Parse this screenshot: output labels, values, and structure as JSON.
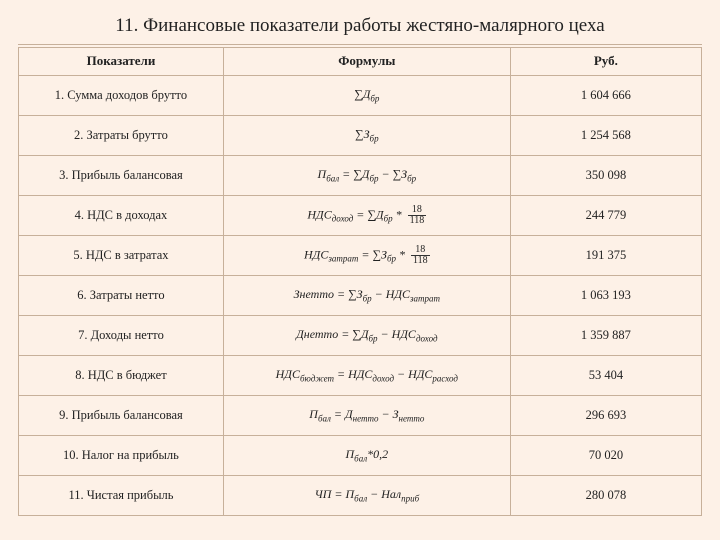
{
  "title": "11. Финансовые показатели работы жестяно-малярного цеха",
  "columns": {
    "c1": "Показатели",
    "c2": "Формулы",
    "c3": "Руб."
  },
  "rows": [
    {
      "label": "1. Сумма доходов брутто",
      "formula": "∑Д<sub>бр</sub>",
      "value": "1 604 666"
    },
    {
      "label": "2. Затраты брутто",
      "formula": "∑З<sub>бр</sub>",
      "value": "1 254 568"
    },
    {
      "label": "3. Прибыль балансовая",
      "formula": "П<sub>бал</sub> = ∑Д<sub>бр</sub> − ∑З<sub>бр</sub>",
      "value": "350 098"
    },
    {
      "label": "4. НДС в доходах",
      "formula": "НДС<sub>доход</sub> = ∑Д<sub>бр</sub> * <span class='frac'><span class='num'>18</span><span class='den'>118</span></span>",
      "value": "244 779"
    },
    {
      "label": "5. НДС в затратах",
      "formula": "НДС<sub>затрат</sub> = ∑З<sub>бр</sub> * <span class='frac'><span class='num'>18</span><span class='den'>118</span></span>",
      "value": "191 375"
    },
    {
      "label": "6. Затраты нетто",
      "formula": "Знетто = ∑З<sub>бр</sub> − НДС<sub>затрат</sub>",
      "value": "1 063 193"
    },
    {
      "label": "7. Доходы нетто",
      "formula": "Днетто = ∑Д<sub>бр</sub> − НДС<sub>доход</sub>",
      "value": "1 359 887"
    },
    {
      "label": "8. НДС в бюджет",
      "formula": "НДС<sub>бюджет</sub> = НДС<sub>доход</sub> − НДС<sub>расход</sub>",
      "value": "53 404"
    },
    {
      "label": "9. Прибыль балансовая",
      "formula": "П<sub>бал</sub> = Д<sub>нетто</sub> − З<sub>нетто</sub>",
      "value": "296 693"
    },
    {
      "label": "10. Налог на прибыль",
      "formula": "П<sub>бал</sub>*0,2",
      "value": "70 020"
    },
    {
      "label": "11. Чистая прибыль",
      "formula": "ЧП = П<sub>бал</sub> − Нал<sub>приб</sub>",
      "value": "280 078"
    }
  ],
  "colors": {
    "page_bg": "#fdf1e7",
    "border": "#c7b09a",
    "text": "#222222"
  },
  "fonts": {
    "title_pt": 19,
    "header_pt": 13,
    "cell_pt": 12.5
  }
}
